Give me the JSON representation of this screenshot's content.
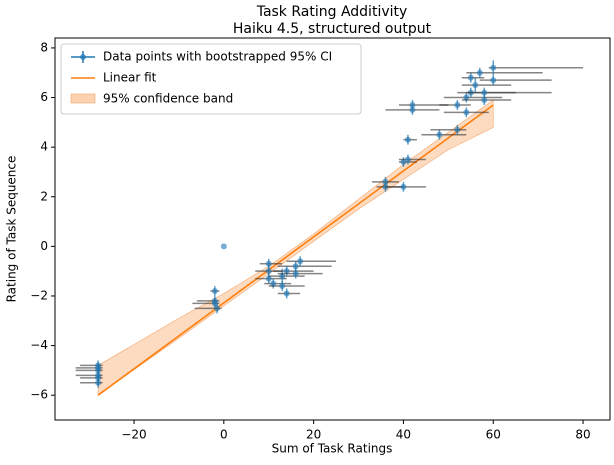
{
  "chart_data": {
    "type": "scatter",
    "title": "Task Rating Additivity",
    "subtitle": "Haiku 4.5, structured output",
    "xlabel": "Sum of Task Ratings",
    "ylabel": "Rating of Task Sequence",
    "xlim": [
      -37.6,
      86
    ],
    "ylim": [
      -7,
      8.4
    ],
    "xticks": [
      {
        "value": -20,
        "label": "−20"
      },
      0,
      20,
      40,
      60,
      80
    ],
    "yticks": [
      {
        "value": -6,
        "label": "−6"
      },
      {
        "value": -4,
        "label": "−4"
      },
      {
        "value": -2,
        "label": "−2"
      },
      0,
      2,
      4,
      6,
      8
    ],
    "legend": "upper left",
    "series": [
      {
        "name": "Data points with bootstrapped 95% CI",
        "color": "#1f77b4",
        "errcolor": "#333333",
        "x": [
          -28,
          -28,
          -28,
          -28,
          -28,
          -28,
          -2,
          -2,
          -1.5,
          -2,
          0,
          10,
          10,
          11,
          10,
          13,
          13,
          14,
          14,
          16,
          17,
          16,
          36,
          36,
          40,
          40,
          41,
          41,
          42,
          42,
          48,
          52,
          52,
          54,
          54,
          55,
          56,
          55,
          57,
          58,
          60,
          60,
          58
        ],
        "values": [
          -4.9,
          -5.0,
          -5.2,
          -5.3,
          -5.5,
          -4.8,
          -1.8,
          -2.3,
          -2.5,
          -2.2,
          0,
          -1.0,
          -1.3,
          -1.5,
          -0.7,
          -1.2,
          -1.6,
          -1.0,
          -1.9,
          -0.8,
          -0.6,
          -1.1,
          2.6,
          2.4,
          2.4,
          3.4,
          3.5,
          4.3,
          5.5,
          5.7,
          4.5,
          4.7,
          5.7,
          5.4,
          6.0,
          6.2,
          6.5,
          6.8,
          7.0,
          6.2,
          7.2,
          6.7,
          5.9
        ],
        "xerr_low": [
          5,
          5,
          5,
          4,
          4,
          4,
          1,
          5,
          5,
          4,
          0,
          3,
          3,
          2,
          2,
          3,
          3,
          3,
          2,
          4,
          3,
          4,
          3,
          2,
          4,
          1,
          2,
          1,
          6,
          3,
          4,
          6,
          4,
          5,
          5,
          3,
          3,
          2,
          3,
          4,
          1,
          3,
          5
        ],
        "xerr_high": [
          1,
          1,
          1,
          1,
          1,
          1,
          1,
          1,
          1,
          1,
          0,
          3,
          4,
          4,
          3,
          5,
          5,
          6,
          3,
          8,
          8,
          6,
          3,
          4,
          5,
          3,
          4,
          2,
          6,
          8,
          6,
          2,
          3,
          5,
          8,
          10,
          8,
          3,
          14,
          15,
          20,
          13,
          6
        ],
        "yerr": [
          0.2,
          0.3,
          0.2,
          0.3,
          0.2,
          0.2,
          0.2,
          0.2,
          0.2,
          0.2,
          0,
          0.3,
          0.2,
          0.2,
          0.2,
          0.3,
          0.2,
          0.2,
          0.2,
          0.2,
          0.2,
          0.2,
          0.2,
          0.2,
          0.2,
          0.2,
          0.2,
          0.2,
          0.2,
          0.2,
          0.2,
          0.2,
          0.2,
          0.2,
          0.2,
          0.2,
          0.3,
          0.2,
          0.2,
          0.2,
          0.3,
          0.2,
          0.2
        ]
      }
    ],
    "fit": {
      "name": "Linear fit",
      "color": "#ff7f0e",
      "x": [
        -28,
        60
      ],
      "values": [
        -6.0,
        5.7
      ]
    },
    "band": {
      "name": "95% confidence band",
      "color": "#fdd2b0",
      "x": [
        -28,
        -10,
        0,
        10,
        20,
        30,
        40,
        50,
        60
      ],
      "lower": [
        -6.0,
        -3.7,
        -2.4,
        -1.1,
        0.2,
        1.5,
        2.7,
        3.9,
        4.8
      ],
      "upper": [
        -4.8,
        -2.9,
        -1.9,
        -0.8,
        0.5,
        1.9,
        3.3,
        4.6,
        5.9
      ]
    }
  }
}
